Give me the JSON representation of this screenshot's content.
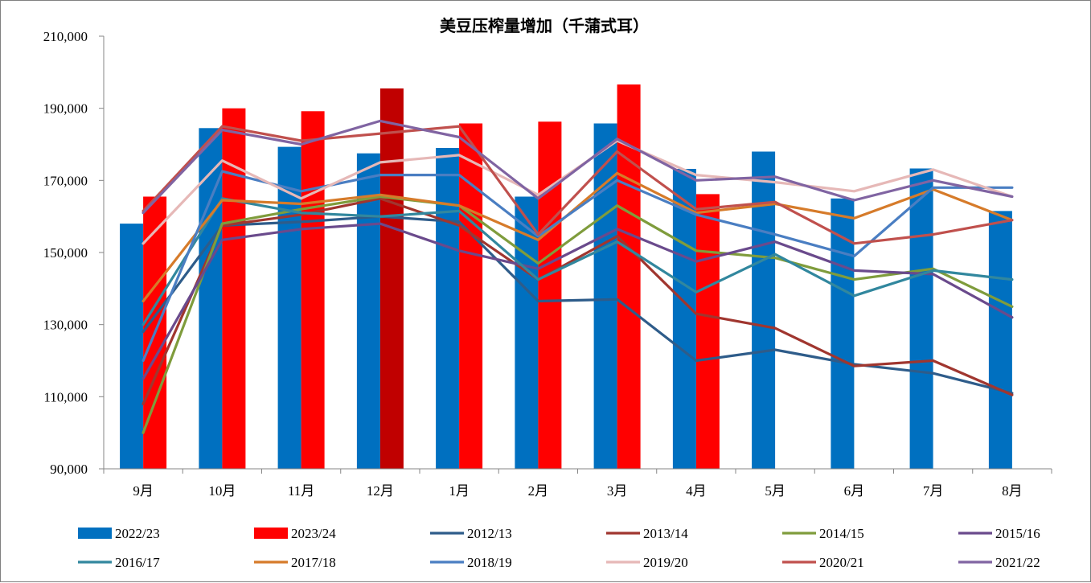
{
  "chart_data": {
    "type": "bar",
    "title": "美豆压榨量增加（千蒲式耳）",
    "xlabel": "",
    "ylabel": "",
    "categories": [
      "9月",
      "10月",
      "11月",
      "12月",
      "1月",
      "2月",
      "3月",
      "4月",
      "5月",
      "6月",
      "7月",
      "8月"
    ],
    "ylim": [
      90000,
      210000
    ],
    "yticks": [
      90000,
      110000,
      130000,
      150000,
      170000,
      190000,
      210000
    ],
    "ytick_labels": [
      "90,000",
      "110,000",
      "130,000",
      "150,000",
      "170,000",
      "190,000",
      "210,000"
    ],
    "grid": false,
    "legend_position": "bottom",
    "bar_series": [
      {
        "name": "2022/23",
        "color": "#0070C0",
        "values": [
          158000,
          184500,
          179300,
          177500,
          179000,
          165500,
          185800,
          173200,
          178000,
          165000,
          173300,
          161500
        ]
      },
      {
        "name": "2023/24",
        "color": "#FF0000",
        "highlight_color": "#C00000",
        "highlight_index": 3,
        "values": [
          165500,
          190000,
          189200,
          195500,
          185800,
          186300,
          196600,
          166200,
          null,
          null,
          null,
          null
        ]
      }
    ],
    "line_series": [
      {
        "name": "2012/13",
        "color": "#2E5C8A",
        "values": [
          128000,
          157500,
          158500,
          160000,
          158500,
          136500,
          137000,
          120000,
          123000,
          119000,
          116500,
          111000
        ]
      },
      {
        "name": "2013/14",
        "color": "#A0362F",
        "values": [
          108000,
          157500,
          160500,
          165000,
          157500,
          142500,
          154500,
          133000,
          129000,
          118500,
          120000,
          110500
        ]
      },
      {
        "name": "2014/15",
        "color": "#7F9C3C",
        "values": [
          100000,
          158000,
          162000,
          165500,
          163000,
          147000,
          163000,
          150500,
          148500,
          142500,
          145500,
          135000
        ]
      },
      {
        "name": "2015/16",
        "color": "#6A4A8C",
        "values": [
          115000,
          153500,
          156500,
          158000,
          150500,
          145500,
          156500,
          147500,
          153000,
          145000,
          144000,
          132000
        ]
      },
      {
        "name": "2016/17",
        "color": "#31879E",
        "values": [
          130000,
          165000,
          161000,
          160000,
          161500,
          142500,
          153000,
          139000,
          149500,
          138000,
          145000,
          142500
        ]
      },
      {
        "name": "2017/18",
        "color": "#D67B2A",
        "values": [
          136500,
          164500,
          163500,
          166000,
          163000,
          153500,
          172000,
          161000,
          163500,
          159500,
          167500,
          159000
        ]
      },
      {
        "name": "2018/19",
        "color": "#4A7EC2",
        "values": [
          120000,
          172500,
          167000,
          171500,
          171500,
          154500,
          170000,
          160500,
          155000,
          149000,
          168000,
          168000
        ]
      },
      {
        "name": "2019/20",
        "color": "#E6B8B7",
        "values": [
          152500,
          175500,
          165000,
          175000,
          177000,
          166000,
          181000,
          171500,
          169500,
          167000,
          173000,
          165500
        ]
      },
      {
        "name": "2020/21",
        "color": "#C0504D",
        "values": [
          161500,
          185000,
          181000,
          183000,
          185000,
          155000,
          178000,
          162000,
          164000,
          152500,
          155000,
          159000
        ]
      },
      {
        "name": "2021/22",
        "color": "#8064A2",
        "values": [
          161000,
          184000,
          180000,
          186500,
          182000,
          165000,
          181500,
          170000,
          171000,
          164500,
          170000,
          165500
        ]
      }
    ]
  }
}
